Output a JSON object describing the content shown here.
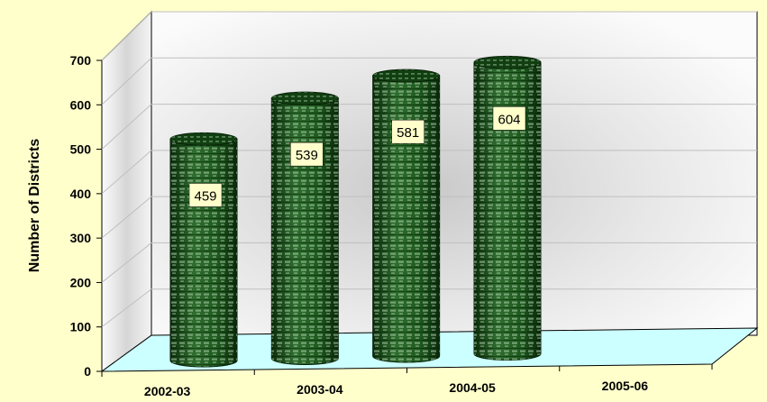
{
  "chart_data": {
    "type": "bar",
    "categories": [
      "2002-03",
      "2003-04",
      "2004-05",
      "2005-06"
    ],
    "values": [
      459,
      539,
      581,
      604
    ],
    "ylabel": "Number of Districts",
    "xlabel": "",
    "ylim": [
      0,
      700
    ],
    "yticks": [
      0,
      100,
      200,
      300,
      400,
      500,
      600,
      700
    ],
    "grid": true,
    "data_labels": true,
    "colors": {
      "background": "#FFFFCC",
      "bar": "#1E5A1E",
      "bar_dark": "#0B2E0B",
      "floor": "#CCFFFF",
      "wall": "#F2F2F2",
      "label_box": "#FFFFCC"
    }
  }
}
